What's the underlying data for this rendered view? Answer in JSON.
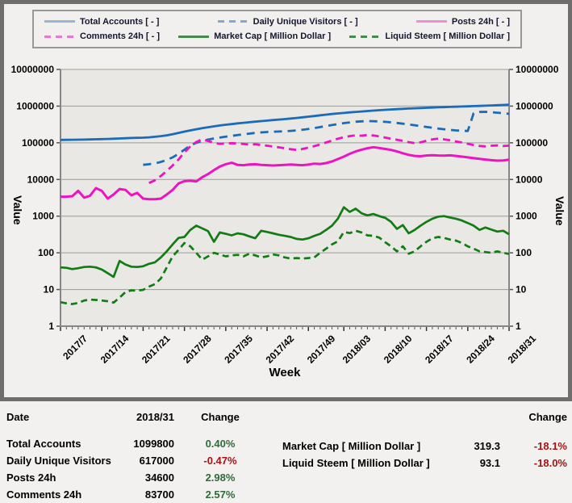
{
  "legend": {
    "items": [
      {
        "label": "Total Accounts [ - ]",
        "swatch_color": "#96b7d8",
        "dashed": false
      },
      {
        "label": "Daily Unique Visitors [ - ]",
        "swatch_color": "#7fa9d8",
        "dashed": true
      },
      {
        "label": "Posts 24h [ - ]",
        "swatch_color": "#f08cd8",
        "dashed": false
      },
      {
        "label": "Comments 24h [ - ]",
        "swatch_color": "#e878d0",
        "dashed": true
      },
      {
        "label": "Market Cap [ Million Dollar ]",
        "swatch_color": "#48894f",
        "dashed": false
      },
      {
        "label": "Liquid Steem [ Million Dollar ]",
        "swatch_color": "#48894f",
        "dashed": true
      }
    ]
  },
  "chart_data": {
    "type": "line",
    "log_y": true,
    "ylim": [
      1,
      10000000
    ],
    "y_title": "Value",
    "x_title": "Week",
    "grid": true,
    "n_points": 77,
    "y_tick_labels": [
      "10000000",
      "1000000",
      "100000",
      "10000",
      "1000",
      "100",
      "10",
      "1"
    ],
    "x_tick_labels": [
      "2017/7",
      "2017/14",
      "2017/21",
      "2017/28",
      "2017/35",
      "2017/42",
      "2017/49",
      "2018/03",
      "2018/10",
      "2018/17",
      "2018/24",
      "2018/31"
    ],
    "x_tick_positions": [
      0,
      7,
      14,
      21,
      28,
      35,
      42,
      48,
      55,
      62,
      69,
      76
    ],
    "series": [
      {
        "id": "total-accounts",
        "name": "Total Accounts [ - ]",
        "color": "#1b6cb8",
        "dashed": false,
        "width": 2.8,
        "values": [
          120000,
          120500,
          121000,
          121800,
          122500,
          123500,
          124500,
          126000,
          127500,
          129000,
          131000,
          133000,
          135000,
          136500,
          138000,
          141000,
          146000,
          152000,
          160000,
          172000,
          186000,
          202000,
          218000,
          234000,
          250000,
          266000,
          281000,
          296000,
          310000,
          324000,
          338000,
          351000,
          364000,
          377000,
          390000,
          403000,
          416000,
          429000,
          443000,
          458000,
          475000,
          494000,
          515000,
          538000,
          562000,
          586000,
          608000,
          630000,
          652000,
          673000,
          694000,
          714000,
          734000,
          754000,
          774000,
          793000,
          811000,
          828000,
          844000,
          859000,
          874000,
          888000,
          901000,
          914000,
          926000,
          938000,
          950000,
          962000,
          974000,
          987000,
          1000000,
          1014000,
          1029000,
          1044000,
          1058000,
          1075000,
          1099800
        ]
      },
      {
        "id": "daily-unique-visitors",
        "name": "Daily Unique Visitors [ - ]",
        "color": "#1b6cb8",
        "dashed": true,
        "dash": "10 7",
        "width": 2.8,
        "values": [
          null,
          null,
          null,
          null,
          null,
          null,
          null,
          null,
          null,
          null,
          null,
          null,
          null,
          null,
          25000,
          26000,
          27500,
          30000,
          34000,
          40000,
          50000,
          65000,
          85000,
          100000,
          112000,
          122000,
          131000,
          139000,
          147000,
          154000,
          162000,
          170000,
          178000,
          186000,
          192000,
          197000,
          200000,
          203000,
          206000,
          211000,
          218000,
          227000,
          238000,
          252000,
          268000,
          286000,
          305000,
          324000,
          343000,
          360000,
          374000,
          384000,
          390000,
          388000,
          382000,
          373000,
          361000,
          347000,
          332000,
          317000,
          301000,
          286000,
          271000,
          257000,
          245000,
          234000,
          225000,
          218000,
          213000,
          210000,
          640000,
          690000,
          700000,
          682000,
          662000,
          640000,
          617000
        ]
      },
      {
        "id": "posts-24h",
        "name": "Posts 24h [ - ]",
        "color": "#ee13c0",
        "dashed": false,
        "width": 3,
        "values": [
          3400,
          3400,
          3500,
          4900,
          3200,
          3600,
          5800,
          4900,
          3000,
          3900,
          5500,
          5200,
          3700,
          4300,
          3000,
          2900,
          2900,
          3000,
          3900,
          5200,
          7800,
          9000,
          9200,
          8800,
          11500,
          14000,
          18000,
          22500,
          26000,
          28500,
          25000,
          24500,
          25500,
          26000,
          25000,
          24500,
          24000,
          24500,
          25000,
          25500,
          25000,
          24500,
          25500,
          27000,
          26500,
          28000,
          31000,
          36000,
          42000,
          50000,
          58000,
          65000,
          71000,
          76000,
          72000,
          68000,
          64000,
          58000,
          52000,
          47000,
          44000,
          43000,
          45000,
          46000,
          45000,
          44500,
          45500,
          44000,
          42000,
          40000,
          38000,
          36500,
          35000,
          33500,
          32500,
          33000,
          34600
        ]
      },
      {
        "id": "comments-24h",
        "name": "Comments 24h [ - ]",
        "color": "#ee13c0",
        "dashed": true,
        "dash": "9 6",
        "width": 2.8,
        "values": [
          null,
          null,
          null,
          null,
          null,
          null,
          null,
          null,
          null,
          null,
          null,
          null,
          null,
          null,
          null,
          8000,
          9500,
          12500,
          17000,
          24000,
          35000,
          55000,
          80000,
          105000,
          125000,
          112000,
          100000,
          94000,
          96000,
          98000,
          96000,
          93000,
          89000,
          91000,
          87000,
          83000,
          79000,
          75000,
          71000,
          67000,
          64000,
          68000,
          74000,
          81000,
          90000,
          102000,
          115000,
          129000,
          142000,
          152000,
          160000,
          156000,
          163000,
          158000,
          149000,
          139000,
          129000,
          121000,
          113000,
          104000,
          98000,
          103000,
          114000,
          124000,
          130000,
          124000,
          117000,
          109000,
          102000,
          94000,
          87000,
          82000,
          80000,
          83000,
          85000,
          82000,
          83700
        ]
      },
      {
        "id": "market-cap",
        "name": "Market Cap [ Million Dollar ]",
        "color": "#117c11",
        "dashed": false,
        "width": 2.7,
        "values": [
          40,
          39,
          36,
          38,
          41,
          42,
          40,
          35,
          28,
          22,
          60,
          48,
          42,
          41,
          43,
          50,
          55,
          75,
          110,
          170,
          255,
          270,
          420,
          550,
          465,
          390,
          200,
          360,
          330,
          300,
          340,
          320,
          280,
          250,
          400,
          370,
          340,
          310,
          290,
          270,
          240,
          230,
          250,
          290,
          330,
          420,
          550,
          850,
          1750,
          1300,
          1600,
          1200,
          1050,
          1150,
          1000,
          900,
          700,
          450,
          570,
          340,
          420,
          550,
          700,
          850,
          970,
          1000,
          920,
          850,
          760,
          650,
          550,
          420,
          490,
          430,
          380,
          400,
          319.3
        ]
      },
      {
        "id": "liquid-steem",
        "name": "Liquid Steem [ Million Dollar ]",
        "color": "#117c11",
        "dashed": true,
        "dash": "8 5",
        "width": 2.7,
        "values": [
          4.5,
          4.2,
          4.0,
          4.3,
          5.0,
          5.3,
          5.2,
          5.0,
          4.8,
          4.4,
          6.0,
          8.5,
          9.5,
          9.3,
          9.8,
          12,
          14,
          20,
          40,
          80,
          120,
          185,
          150,
          100,
          65,
          80,
          100,
          90,
          80,
          85,
          88,
          80,
          95,
          85,
          75,
          80,
          90,
          85,
          75,
          70,
          72,
          70,
          72,
          75,
          100,
          130,
          170,
          205,
          370,
          345,
          400,
          360,
          300,
          290,
          260,
          195,
          150,
          110,
          150,
          95,
          110,
          150,
          200,
          250,
          270,
          255,
          230,
          215,
          185,
          150,
          130,
          110,
          105,
          100,
          110,
          100,
          93.1
        ]
      }
    ]
  },
  "table": {
    "left": {
      "header": {
        "date": "Date",
        "value": "2018/31",
        "change": "Change"
      },
      "rows": [
        {
          "label": "Total Accounts",
          "value": "1099800",
          "change": "0.40%",
          "tone": "pos"
        },
        {
          "label": "Daily Unique Visitors",
          "value": "617000",
          "change": "-0.47%",
          "tone": "neg"
        },
        {
          "label": "Posts 24h",
          "value": "34600",
          "change": "2.98%",
          "tone": "pos"
        },
        {
          "label": "Comments 24h",
          "value": "83700",
          "change": "2.57%",
          "tone": "pos"
        }
      ]
    },
    "right": {
      "header": {
        "change": "Change"
      },
      "rows": [
        {
          "label": "Market Cap [ Million Dollar ]",
          "value": "319.3",
          "change": "-18.1%",
          "tone": "neg"
        },
        {
          "label": "Liquid Steem [ Million Dollar ]",
          "value": "93.1",
          "change": "-18.0%",
          "tone": "neg"
        }
      ]
    }
  },
  "colors": {
    "frame_border": "#6f6e6d",
    "plot_bg": "#e9e8e5",
    "grid": "#9c9b99",
    "axis": "#878685",
    "positive": "#2e6b3a",
    "negative": "#a31414"
  }
}
